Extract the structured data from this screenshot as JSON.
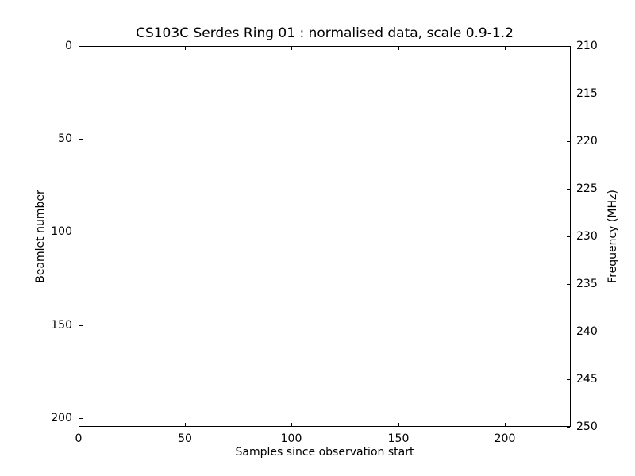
{
  "figure": {
    "background": "#ffffff",
    "frame_color": "#000000",
    "text_color": "#000000"
  },
  "chart_data": {
    "type": "heatmap",
    "title": "CS103C Serdes Ring 01 : normalised data, scale 0.9-1.2",
    "xlabel": "Samples since observation start",
    "ylabel_left": "Beamlet number",
    "ylabel_right": "Frequency (MHz)",
    "xlim": [
      0,
      231
    ],
    "ylim_left_top_to_bottom": [
      0,
      204.8
    ],
    "ylim_right_top_to_bottom": [
      210,
      250
    ],
    "xticks": [
      0,
      50,
      100,
      150,
      200
    ],
    "yticks_left": [
      0,
      50,
      100,
      150,
      200
    ],
    "yticks_right": [
      210,
      215,
      220,
      225,
      230,
      235,
      240,
      245,
      250
    ],
    "grid": false,
    "series": [],
    "plot_area_fill": "#ffffff",
    "note": "plot area renders uniformly white - no visible data points"
  }
}
